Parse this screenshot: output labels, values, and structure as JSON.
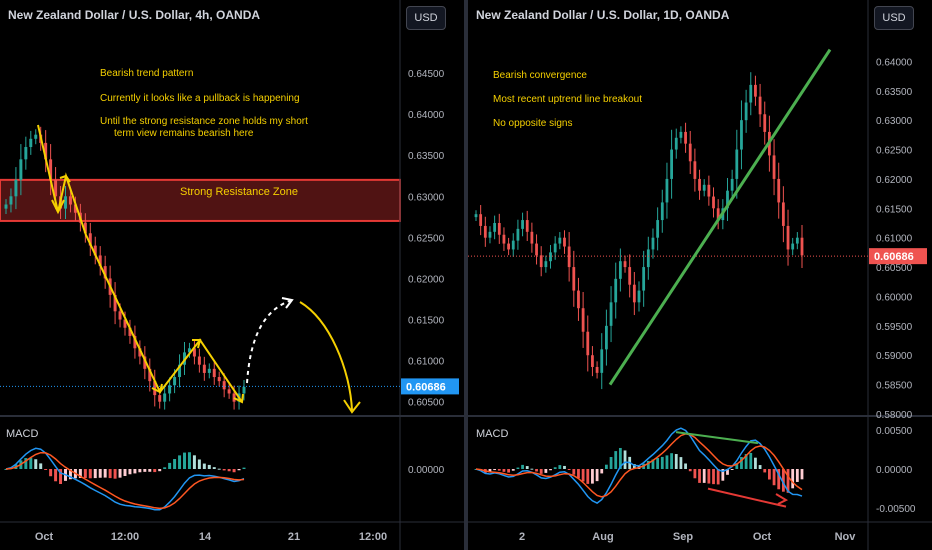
{
  "panels": [
    {
      "title": "New Zealand Dollar / U.S. Dollar, 4h, OANDA",
      "currency_button": "USD",
      "current_price": "0.60686",
      "notes": [
        "Bearish trend pattern",
        "Currently it looks like a pullback is happening",
        "Until the strong resistance zone holds my short",
        "term view remains bearish here"
      ],
      "zone_label": "Strong Resistance Zone",
      "macd_label": "MACD",
      "macd_zero_label": "0.00000"
    },
    {
      "title": "New Zealand Dollar / U.S. Dollar, 1D, OANDA",
      "currency_button": "USD",
      "current_price": "0.60686",
      "notes": [
        "Bearish convergence",
        "Most recent uptrend line breakout",
        "No opposite signs"
      ],
      "macd_label": "MACD"
    }
  ],
  "colors": {
    "background": "#000000",
    "up_candle": "#26a69a",
    "down_candle": "#ef5350",
    "annotation": "#f5d000",
    "trendline": "#4caf50",
    "zone_fill": "#6b1a1a",
    "zone_border": "#e53935",
    "macd_line": "#2196f3",
    "signal_line": "#ff5722",
    "price_tag": "#ef5350",
    "price_tag_left": "#2196f3"
  },
  "chart_data": [
    {
      "type": "candlestick",
      "timeframe": "4h",
      "ylim": [
        0.6035,
        0.65
      ],
      "yticks": [
        "0.64500",
        "0.64000",
        "0.63500",
        "0.63000",
        "0.62500",
        "0.62000",
        "0.61500",
        "0.61000",
        "0.60500"
      ],
      "xticks": [
        "Oct",
        "12:00",
        "14",
        "21",
        "12:00"
      ],
      "resistance_zone": [
        0.627,
        0.632
      ],
      "last_price": 0.60686,
      "macd_ylim": [
        -0.0055,
        0.0055
      ],
      "macd_yticks": [
        "0.00000"
      ],
      "close_path": [
        0.629,
        0.63,
        0.632,
        0.6345,
        0.636,
        0.637,
        0.6375,
        0.6365,
        0.6345,
        0.632,
        0.63,
        0.6285,
        0.63,
        0.629,
        0.628,
        0.6268,
        0.6255,
        0.624,
        0.6228,
        0.6215,
        0.62,
        0.618,
        0.616,
        0.615,
        0.614,
        0.613,
        0.6115,
        0.6105,
        0.609,
        0.6075,
        0.6058,
        0.605,
        0.606,
        0.607,
        0.608,
        0.6095,
        0.611,
        0.6115,
        0.6105,
        0.6095,
        0.6085,
        0.609,
        0.608,
        0.6075,
        0.6065,
        0.606,
        0.605,
        0.606,
        0.6068
      ]
    },
    {
      "type": "candlestick",
      "timeframe": "1D",
      "ylim": [
        0.58,
        0.645
      ],
      "yticks": [
        "0.64000",
        "0.63500",
        "0.63000",
        "0.62500",
        "0.62000",
        "0.61500",
        "0.61000",
        "0.60500",
        "0.60000",
        "0.59500",
        "0.59000",
        "0.58500",
        "0.58000"
      ],
      "xticks": [
        "2",
        "Aug",
        "Sep",
        "Oct",
        "Nov"
      ],
      "last_price": 0.60686,
      "trendline": [
        [
          0.585,
          0.642
        ]
      ],
      "macd_ylim": [
        -0.0065,
        0.0065
      ],
      "macd_yticks": [
        "0.00500",
        "0.00000",
        "-0.00500"
      ],
      "close_path": [
        0.614,
        0.612,
        0.61,
        0.611,
        0.6125,
        0.6105,
        0.609,
        0.608,
        0.6095,
        0.6115,
        0.613,
        0.611,
        0.609,
        0.607,
        0.605,
        0.606,
        0.6075,
        0.609,
        0.61,
        0.6085,
        0.605,
        0.601,
        0.598,
        0.594,
        0.59,
        0.588,
        0.587,
        0.591,
        0.595,
        0.599,
        0.603,
        0.606,
        0.605,
        0.602,
        0.599,
        0.601,
        0.605,
        0.608,
        0.61,
        0.613,
        0.616,
        0.62,
        0.625,
        0.627,
        0.628,
        0.626,
        0.623,
        0.62,
        0.618,
        0.619,
        0.617,
        0.615,
        0.613,
        0.615,
        0.618,
        0.62,
        0.625,
        0.63,
        0.633,
        0.636,
        0.634,
        0.631,
        0.628,
        0.624,
        0.62,
        0.616,
        0.612,
        0.608,
        0.609,
        0.61,
        0.607
      ]
    }
  ]
}
